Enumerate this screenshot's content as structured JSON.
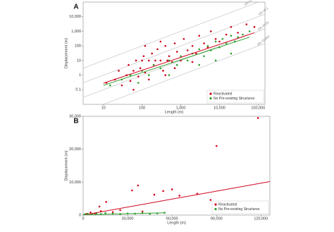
{
  "chart_data": [
    {
      "type": "scatter",
      "panel": "A",
      "xlabel": "Length (m)",
      "ylabel": "Displacement (m)",
      "log_x": true,
      "log_y": true,
      "xlim": [
        3,
        150000
      ],
      "ylim": [
        0.01,
        100000
      ],
      "xticks": [
        10,
        100,
        {
          "value": 1000,
          "label": "1,000"
        },
        {
          "value": 10000,
          "label": "10,000"
        },
        {
          "value": 100000,
          "label": "100,000"
        }
      ],
      "yticks": [
        0.1,
        1,
        10,
        100,
        {
          "value": 1000,
          "label": "1,000"
        },
        {
          "value": 10000,
          "label": "10,000"
        }
      ],
      "legend": "lower right",
      "reference_lines": [
        {
          "label": "D/L=1",
          "ratio": 1
        },
        {
          "label": "D/L=0.1",
          "ratio": 0.1
        },
        {
          "label": "D/L=0.01",
          "ratio": 0.01
        },
        {
          "label": "D/L=0.001",
          "ratio": 0.001
        }
      ],
      "series": [
        {
          "name": "Reactivated",
          "color": "#d0021b",
          "x": [
            12,
            20,
            25,
            30,
            40,
            45,
            50,
            60,
            70,
            80,
            90,
            100,
            110,
            120,
            150,
            180,
            200,
            220,
            250,
            300,
            350,
            400,
            450,
            500,
            600,
            700,
            800,
            1000,
            1200,
            1500,
            2000,
            2500,
            3000,
            4000,
            5000,
            6000,
            8000,
            10000,
            15000,
            20000,
            30000,
            50000,
            80000,
            60,
            150,
            400,
            120,
            300,
            700,
            2000
          ],
          "values": [
            0.3,
            0.5,
            2,
            0.2,
            1,
            5,
            0.4,
            2,
            10,
            0.8,
            3,
            10,
            20,
            1.5,
            10,
            30,
            5,
            10,
            60,
            10,
            2,
            100,
            10,
            20,
            8,
            150,
            40,
            10,
            300,
            50,
            100,
            30,
            500,
            150,
            80,
            1000,
            300,
            200,
            600,
            2000,
            800,
            3000,
            2000,
            0.1,
            0.5,
            1,
            100,
            200,
            3,
            8
          ],
          "fit": {
            "x": [
              10,
              80000
            ],
            "y": [
              0.28,
              800
            ]
          }
        },
        {
          "name": "No Pre-existing Structures",
          "color": "#2ea02e",
          "x": [
            15,
            30,
            50,
            80,
            100,
            150,
            200,
            300,
            500,
            800,
            1000,
            1500,
            2000,
            3000,
            4000,
            5000,
            6000,
            8000,
            10000,
            12000,
            15000,
            20000,
            25000,
            30000,
            40000,
            3000,
            8000,
            500,
            20000,
            60000
          ],
          "values": [
            0.2,
            0.5,
            1,
            0.3,
            2,
            1,
            5,
            3,
            10,
            5,
            20,
            10,
            30,
            60,
            20,
            100,
            50,
            200,
            80,
            300,
            150,
            500,
            200,
            400,
            600,
            5,
            10,
            1,
            30,
            1000
          ],
          "fit": {
            "x": [
              10,
              60000
            ],
            "y": [
              0.2,
              400
            ]
          }
        }
      ]
    },
    {
      "type": "scatter",
      "panel": "B",
      "xlabel": "Length (m)",
      "ylabel": "Displacement (m)",
      "log_x": false,
      "log_y": false,
      "xlim": [
        0,
        126000
      ],
      "ylim": [
        0,
        30000
      ],
      "xticks": [
        0,
        {
          "value": 30000,
          "label": "30,000"
        },
        {
          "value": 60000,
          "label": "60,000"
        },
        {
          "value": 90000,
          "label": "90,000"
        },
        {
          "value": 120000,
          "label": "120,000"
        }
      ],
      "yticks": [
        0,
        {
          "value": 10000,
          "label": "10,000"
        },
        {
          "value": 20000,
          "label": "20,000"
        },
        {
          "value": 30000,
          "label": "30,000"
        }
      ],
      "legend": "lower right",
      "series": [
        {
          "name": "Reactivated",
          "color": "#d0021b",
          "x": [
            118000,
            90000,
            37000,
            33000,
            15500,
            54000,
            60000,
            48000,
            11000,
            65000,
            77000,
            86000,
            2000,
            5000,
            8000,
            12000,
            20000,
            25000,
            3000,
            40000
          ],
          "values": [
            29500,
            21000,
            9000,
            7500,
            4000,
            7300,
            7800,
            6200,
            2600,
            5900,
            6500,
            4600,
            300,
            800,
            500,
            1200,
            900,
            1500,
            200,
            1100
          ],
          "fit": {
            "x": [
              0,
              126000
            ],
            "y": [
              0,
              10200
            ]
          }
        },
        {
          "name": "No Pre-existing Structures",
          "color": "#2ea02e",
          "x": [
            1000,
            3000,
            6000,
            9000,
            12000,
            15000,
            20000,
            25000,
            30000,
            35000,
            40000,
            45000,
            50000,
            55000
          ],
          "values": [
            200,
            400,
            300,
            500,
            350,
            600,
            400,
            300,
            500,
            450,
            600,
            350,
            500,
            700
          ],
          "fit": {
            "x": [
              0,
              55000
            ],
            "y": [
              100,
              700
            ]
          }
        }
      ]
    }
  ]
}
